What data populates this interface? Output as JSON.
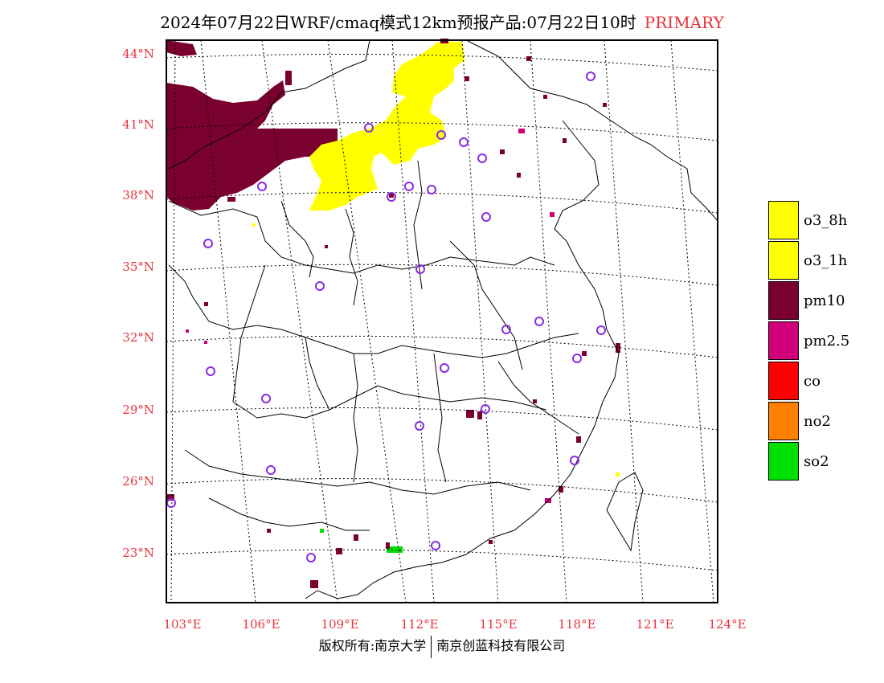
{
  "title": {
    "text": "2024年07月22日WRF/cmaq模式12km预报产品:07月22日10时",
    "highlight": "PRIMARY"
  },
  "axes": {
    "lat_labels": [
      "44°N",
      "41°N",
      "38°N",
      "35°N",
      "32°N",
      "29°N",
      "26°N",
      "23°N"
    ],
    "lon_labels": [
      "103°E",
      "106°E",
      "109°E",
      "112°E",
      "115°E",
      "118°E",
      "121°E",
      "124°E"
    ]
  },
  "legend": {
    "items": [
      {
        "label": "o3_8h",
        "color": "#ffff00"
      },
      {
        "label": "o3_1h",
        "color": "#ffff00"
      },
      {
        "label": "pm10",
        "color": "#7a0030"
      },
      {
        "label": "pm2.5",
        "color": "#d0007a"
      },
      {
        "label": "co",
        "color": "#ff0000"
      },
      {
        "label": "no2",
        "color": "#ff8000"
      },
      {
        "label": "so2",
        "color": "#00e000"
      }
    ]
  },
  "footer": {
    "left": "版权所有:南京大学",
    "right": "南京创蓝科技有限公司"
  },
  "colors": {
    "pm10": "#7a0030",
    "o3": "#ffff00",
    "pm25": "#d0007a",
    "so2": "#00e000",
    "station_circle": "#8a2be2",
    "axis_label": "#e8323c"
  }
}
